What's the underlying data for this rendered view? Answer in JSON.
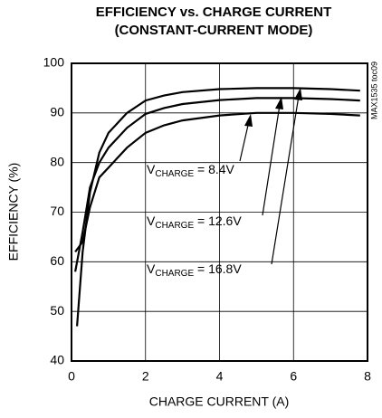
{
  "chart_data": {
    "type": "line",
    "title": [
      "EFFICIENCY vs. CHARGE CURRENT",
      "(CONSTANT-CURRENT MODE)"
    ],
    "x_label": "CHARGE CURRENT (A)",
    "y_label": "EFFICIENCY (%)",
    "side_note": "MAX1535 toc09",
    "xlim": [
      0,
      8
    ],
    "xticks": [
      0,
      2,
      4,
      6,
      8
    ],
    "ylim": [
      40,
      100
    ],
    "yticks": [
      40,
      50,
      60,
      70,
      80,
      90,
      100
    ],
    "grid": true,
    "series": [
      {
        "label": {
          "main": "V",
          "sub": "CHARGE",
          "rest": " = 8.4V"
        },
        "color": "#000000",
        "x": [
          0.1,
          0.3,
          0.5,
          0.75,
          1,
          1.5,
          2,
          2.5,
          3,
          4,
          5,
          6,
          7,
          7.8
        ],
        "values": [
          62,
          64,
          71,
          77,
          79,
          83,
          86,
          87.5,
          88.5,
          89.5,
          90,
          90,
          89.8,
          89.5
        ]
      },
      {
        "label": {
          "main": "V",
          "sub": "CHARGE",
          "rest": " = 12.6V"
        },
        "color": "#000000",
        "x": [
          0.1,
          0.3,
          0.5,
          0.75,
          1,
          1.5,
          2,
          2.5,
          3,
          4,
          5,
          6,
          7,
          7.8
        ],
        "values": [
          58,
          66,
          75,
          80,
          83,
          87,
          89.8,
          91,
          91.8,
          92.6,
          93,
          93,
          92.8,
          92.5
        ]
      },
      {
        "label": {
          "main": "V",
          "sub": "CHARGE",
          "rest": " = 16.8V"
        },
        "color": "#000000",
        "x": [
          0.15,
          0.3,
          0.5,
          0.75,
          1,
          1.5,
          2,
          2.5,
          3,
          4,
          5,
          6,
          7,
          7.8
        ],
        "values": [
          47,
          62,
          74,
          82,
          86,
          90,
          92.5,
          93.5,
          94.2,
          94.8,
          95,
          95,
          94.8,
          94.5
        ]
      }
    ]
  }
}
